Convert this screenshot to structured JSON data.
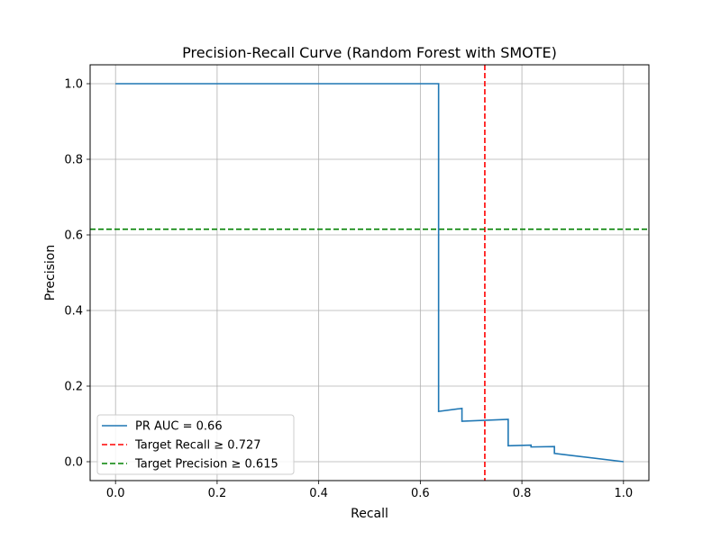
{
  "chart_data": {
    "type": "line",
    "title": "Precision-Recall Curve (Random Forest with SMOTE)",
    "xlabel": "Recall",
    "ylabel": "Precision",
    "xlim": [
      -0.05,
      1.05
    ],
    "ylim": [
      -0.05,
      1.05
    ],
    "xticks": [
      0.0,
      0.2,
      0.4,
      0.6,
      0.8,
      1.0
    ],
    "yticks": [
      0.0,
      0.2,
      0.4,
      0.6,
      0.8,
      1.0
    ],
    "xtick_labels": [
      "0.0",
      "0.2",
      "0.4",
      "0.6",
      "0.8",
      "1.0"
    ],
    "ytick_labels": [
      "0.0",
      "0.2",
      "0.4",
      "0.6",
      "0.8",
      "1.0"
    ],
    "grid": true,
    "legend_position": "lower-left",
    "series": [
      {
        "name": "PR AUC = 0.66",
        "color": "#1f77b4",
        "style": "solid",
        "x": [
          0.0,
          0.636,
          0.636,
          0.682,
          0.682,
          0.773,
          0.773,
          0.818,
          0.818,
          0.864,
          0.864,
          1.0
        ],
        "y": [
          1.0,
          1.0,
          0.133,
          0.141,
          0.107,
          0.112,
          0.042,
          0.044,
          0.039,
          0.04,
          0.022,
          0.0
        ]
      }
    ],
    "reference_lines": [
      {
        "name": "Target Recall ≥ 0.727",
        "orientation": "vertical",
        "value": 0.727,
        "color": "#ff0000",
        "style": "dashed"
      },
      {
        "name": "Target Precision ≥ 0.615",
        "orientation": "horizontal",
        "value": 0.615,
        "color": "#008000",
        "style": "dashed"
      }
    ]
  }
}
